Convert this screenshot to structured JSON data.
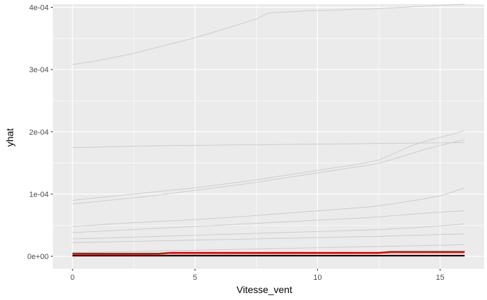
{
  "chart_data": {
    "type": "line",
    "title": "",
    "xlabel": "Vitesse_vent",
    "ylabel": "yhat",
    "xlim": [
      -0.8,
      16.8
    ],
    "ylim": [
      -2e-05,
      0.000405
    ],
    "x_ticks": [
      0,
      5,
      10,
      15
    ],
    "x_tick_labels": [
      "0",
      "5",
      "10",
      "15"
    ],
    "y_ticks": [
      0,
      0.0001,
      0.0002,
      0.0003,
      0.0004
    ],
    "y_tick_labels": [
      "0e+00",
      "1e-04",
      "2e-04",
      "3e-04",
      "4e-04"
    ],
    "grid": true,
    "legend": "none",
    "colors": {
      "panel": "#ebebeb",
      "grid": "#ffffff",
      "ice_line": "#c9c9c9",
      "pdp_line": "#e00000",
      "center_line": "#000000"
    },
    "x": [
      0,
      0.5,
      1,
      1.5,
      2,
      2.5,
      3,
      3.5,
      4,
      4.5,
      5,
      5.5,
      6,
      6.5,
      7,
      7.5,
      8,
      8.5,
      9,
      9.5,
      10,
      10.5,
      11,
      11.5,
      12,
      12.5,
      13,
      13.5,
      14,
      14.5,
      15,
      15.5,
      16
    ],
    "series": [
      {
        "role": "ice",
        "values": [
          0.000308,
          0.000311,
          0.000314,
          0.000318,
          0.000322,
          0.000326,
          0.000331,
          0.000336,
          0.000341,
          0.000346,
          0.000351,
          0.000357,
          0.000363,
          0.000369,
          0.000375,
          0.000381,
          0.000391,
          0.000392,
          0.000393,
          0.000394,
          0.000395,
          0.000395,
          0.000396,
          0.000397,
          0.000397,
          0.000398,
          0.000399,
          0.0004,
          0.000401,
          0.000402,
          0.000403,
          0.000404,
          0.000405
        ]
      },
      {
        "role": "ice",
        "values": [
          0.0001745,
          0.000175,
          0.0001755,
          0.000176,
          0.0001765,
          0.000177,
          0.0001772,
          0.0001775,
          0.0001778,
          0.000178,
          0.0001782,
          0.0001784,
          0.0001786,
          0.0001788,
          0.000179,
          0.0001792,
          0.0001794,
          0.0001796,
          0.0001798,
          0.00018,
          0.0001802,
          0.0001804,
          0.0001806,
          0.0001808,
          0.000181,
          0.0001812,
          0.0001814,
          0.0001816,
          0.0001818,
          0.000182,
          0.0001822,
          0.0001824,
          0.0001826
        ]
      },
      {
        "role": "ice",
        "values": [
          9e-05,
          9.2e-05,
          9.4e-05,
          9.6e-05,
          9.8e-05,
          0.0001,
          0.000102,
          0.000104,
          0.000106,
          0.000108,
          0.00011,
          0.0001125,
          0.000115,
          0.0001175,
          0.00012,
          0.000123,
          0.000126,
          0.000129,
          0.000132,
          0.000135,
          0.000138,
          0.000141,
          0.000144,
          0.000147,
          0.0001505,
          0.0001545,
          0.000163,
          0.000172,
          0.00018,
          0.000186,
          0.000191,
          0.000196,
          0.000202
        ]
      },
      {
        "role": "ice",
        "values": [
          8.4e-05,
          8.6e-05,
          8.8e-05,
          9e-05,
          9.2e-05,
          9.4e-05,
          9.6e-05,
          9.85e-05,
          0.000101,
          0.0001035,
          0.000106,
          0.0001085,
          0.000111,
          0.0001135,
          0.000116,
          0.000119,
          0.000122,
          0.000125,
          0.000128,
          0.000131,
          0.000134,
          0.000137,
          0.00014,
          0.000143,
          0.000146,
          0.0001495,
          0.000155,
          0.000161,
          0.000167,
          0.000173,
          0.000178,
          0.000183,
          0.000187
        ]
      },
      {
        "role": "ice",
        "values": [
          4.8e-05,
          4.92e-05,
          5.05e-05,
          5.18e-05,
          5.3e-05,
          5.4e-05,
          5.5e-05,
          5.6e-05,
          5.7e-05,
          5.8e-05,
          5.9e-05,
          6.02e-05,
          6.15e-05,
          6.28e-05,
          6.4e-05,
          6.55e-05,
          6.7e-05,
          6.85e-05,
          7e-05,
          7.15e-05,
          7.3e-05,
          7.45e-05,
          7.6e-05,
          7.75e-05,
          7.9e-05,
          8.1e-05,
          8.4e-05,
          8.7e-05,
          9e-05,
          9.35e-05,
          9.7e-05,
          0.000103,
          0.00011
        ]
      },
      {
        "role": "ice",
        "values": [
          3.8e-05,
          3.9e-05,
          4e-05,
          4.1e-05,
          4.2e-05,
          4.3e-05,
          4.4e-05,
          4.5e-05,
          4.6e-05,
          4.7e-05,
          4.8e-05,
          4.9e-05,
          5e-05,
          5.1e-05,
          5.2e-05,
          5.3e-05,
          5.4e-05,
          5.5e-05,
          5.6e-05,
          5.7e-05,
          5.8e-05,
          5.9e-05,
          6e-05,
          6.1e-05,
          6.2e-05,
          6.35e-05,
          6.5e-05,
          6.65e-05,
          6.8e-05,
          6.95e-05,
          7.1e-05,
          7.2e-05,
          7.3e-05
        ]
      },
      {
        "role": "ice",
        "values": [
          2.8e-05,
          2.85e-05,
          2.9e-05,
          2.96e-05,
          3.02e-05,
          3.08e-05,
          3.14e-05,
          3.2e-05,
          3.26e-05,
          3.32e-05,
          3.38e-05,
          3.44e-05,
          3.5e-05,
          3.56e-05,
          3.62e-05,
          3.68e-05,
          3.74e-05,
          3.8e-05,
          3.86e-05,
          3.92e-05,
          3.98e-05,
          4.04e-05,
          4.1e-05,
          4.16e-05,
          4.22e-05,
          4.3e-05,
          4.4e-05,
          4.5e-05,
          4.6e-05,
          4.75e-05,
          4.9e-05,
          5.05e-05,
          5.2e-05
        ]
      },
      {
        "role": "ice",
        "values": [
          2.2e-05,
          2.24e-05,
          2.28e-05,
          2.32e-05,
          2.36e-05,
          2.4e-05,
          2.44e-05,
          2.48e-05,
          2.52e-05,
          2.56e-05,
          2.6e-05,
          2.64e-05,
          2.68e-05,
          2.72e-05,
          2.76e-05,
          2.8e-05,
          2.84e-05,
          2.88e-05,
          2.92e-05,
          2.96e-05,
          3e-05,
          3.04e-05,
          3.08e-05,
          3.12e-05,
          3.16e-05,
          3.2e-05,
          3.26e-05,
          3.32e-05,
          3.38e-05,
          3.44e-05,
          3.5e-05,
          3.55e-05,
          3.6e-05
        ]
      },
      {
        "role": "ice",
        "values": [
          6e-06,
          6.3e-06,
          6.6e-06,
          7e-06,
          7.4e-06,
          7.8e-06,
          8.2e-06,
          8.6e-06,
          9e-06,
          9.4e-06,
          9.8e-06,
          1.02e-05,
          1.06e-05,
          1.1e-05,
          1.14e-05,
          1.18e-05,
          1.22e-05,
          1.26e-05,
          1.3e-05,
          1.34e-05,
          1.38e-05,
          1.42e-05,
          1.46e-05,
          1.5e-05,
          1.54e-05,
          1.58e-05,
          1.62e-05,
          1.66e-05,
          1.7e-05,
          1.74e-05,
          1.78e-05,
          1.82e-05,
          1.9e-05
        ]
      },
      {
        "role": "ice",
        "values": [
          2e-06,
          2.1e-06,
          2.2e-06,
          2.3e-06,
          2.4e-06,
          2.5e-06,
          2.6e-06,
          2.7e-06,
          2.8e-06,
          2.9e-06,
          3e-06,
          3.1e-06,
          3.2e-06,
          3.3e-06,
          3.4e-06,
          3.5e-06,
          3.6e-06,
          3.7e-06,
          3.8e-06,
          3.9e-06,
          4e-06,
          4.1e-06,
          4.2e-06,
          4.3e-06,
          4.4e-06,
          4.5e-06,
          4.6e-06,
          4.7e-06,
          4.8e-06,
          4.9e-06,
          5e-06,
          5.1e-06,
          5.2e-06
        ]
      },
      {
        "role": "center",
        "values": [
          1e-06,
          1e-06,
          1e-06,
          1e-06,
          1e-06,
          1e-06,
          1e-06,
          1e-06,
          1e-06,
          1e-06,
          1e-06,
          1e-06,
          1e-06,
          1e-06,
          1e-06,
          1e-06,
          1e-06,
          1e-06,
          1e-06,
          1e-06,
          1e-06,
          1e-06,
          1e-06,
          1e-06,
          1e-06,
          1e-06,
          1e-06,
          1e-06,
          1e-06,
          1e-06,
          1e-06,
          1e-06,
          1e-06
        ]
      },
      {
        "role": "pdp",
        "values": [
          4e-06,
          4e-06,
          4e-06,
          4e-06,
          4e-06,
          4e-06,
          4e-06,
          4e-06,
          5.5e-06,
          5.5e-06,
          5.5e-06,
          5.5e-06,
          5.5e-06,
          5.5e-06,
          5.5e-06,
          5.5e-06,
          5.5e-06,
          5.5e-06,
          5.5e-06,
          5.5e-06,
          5.5e-06,
          5.5e-06,
          5.5e-06,
          5.5e-06,
          5.5e-06,
          5.5e-06,
          7e-06,
          7e-06,
          7e-06,
          7e-06,
          7e-06,
          7e-06,
          7e-06
        ]
      }
    ]
  }
}
